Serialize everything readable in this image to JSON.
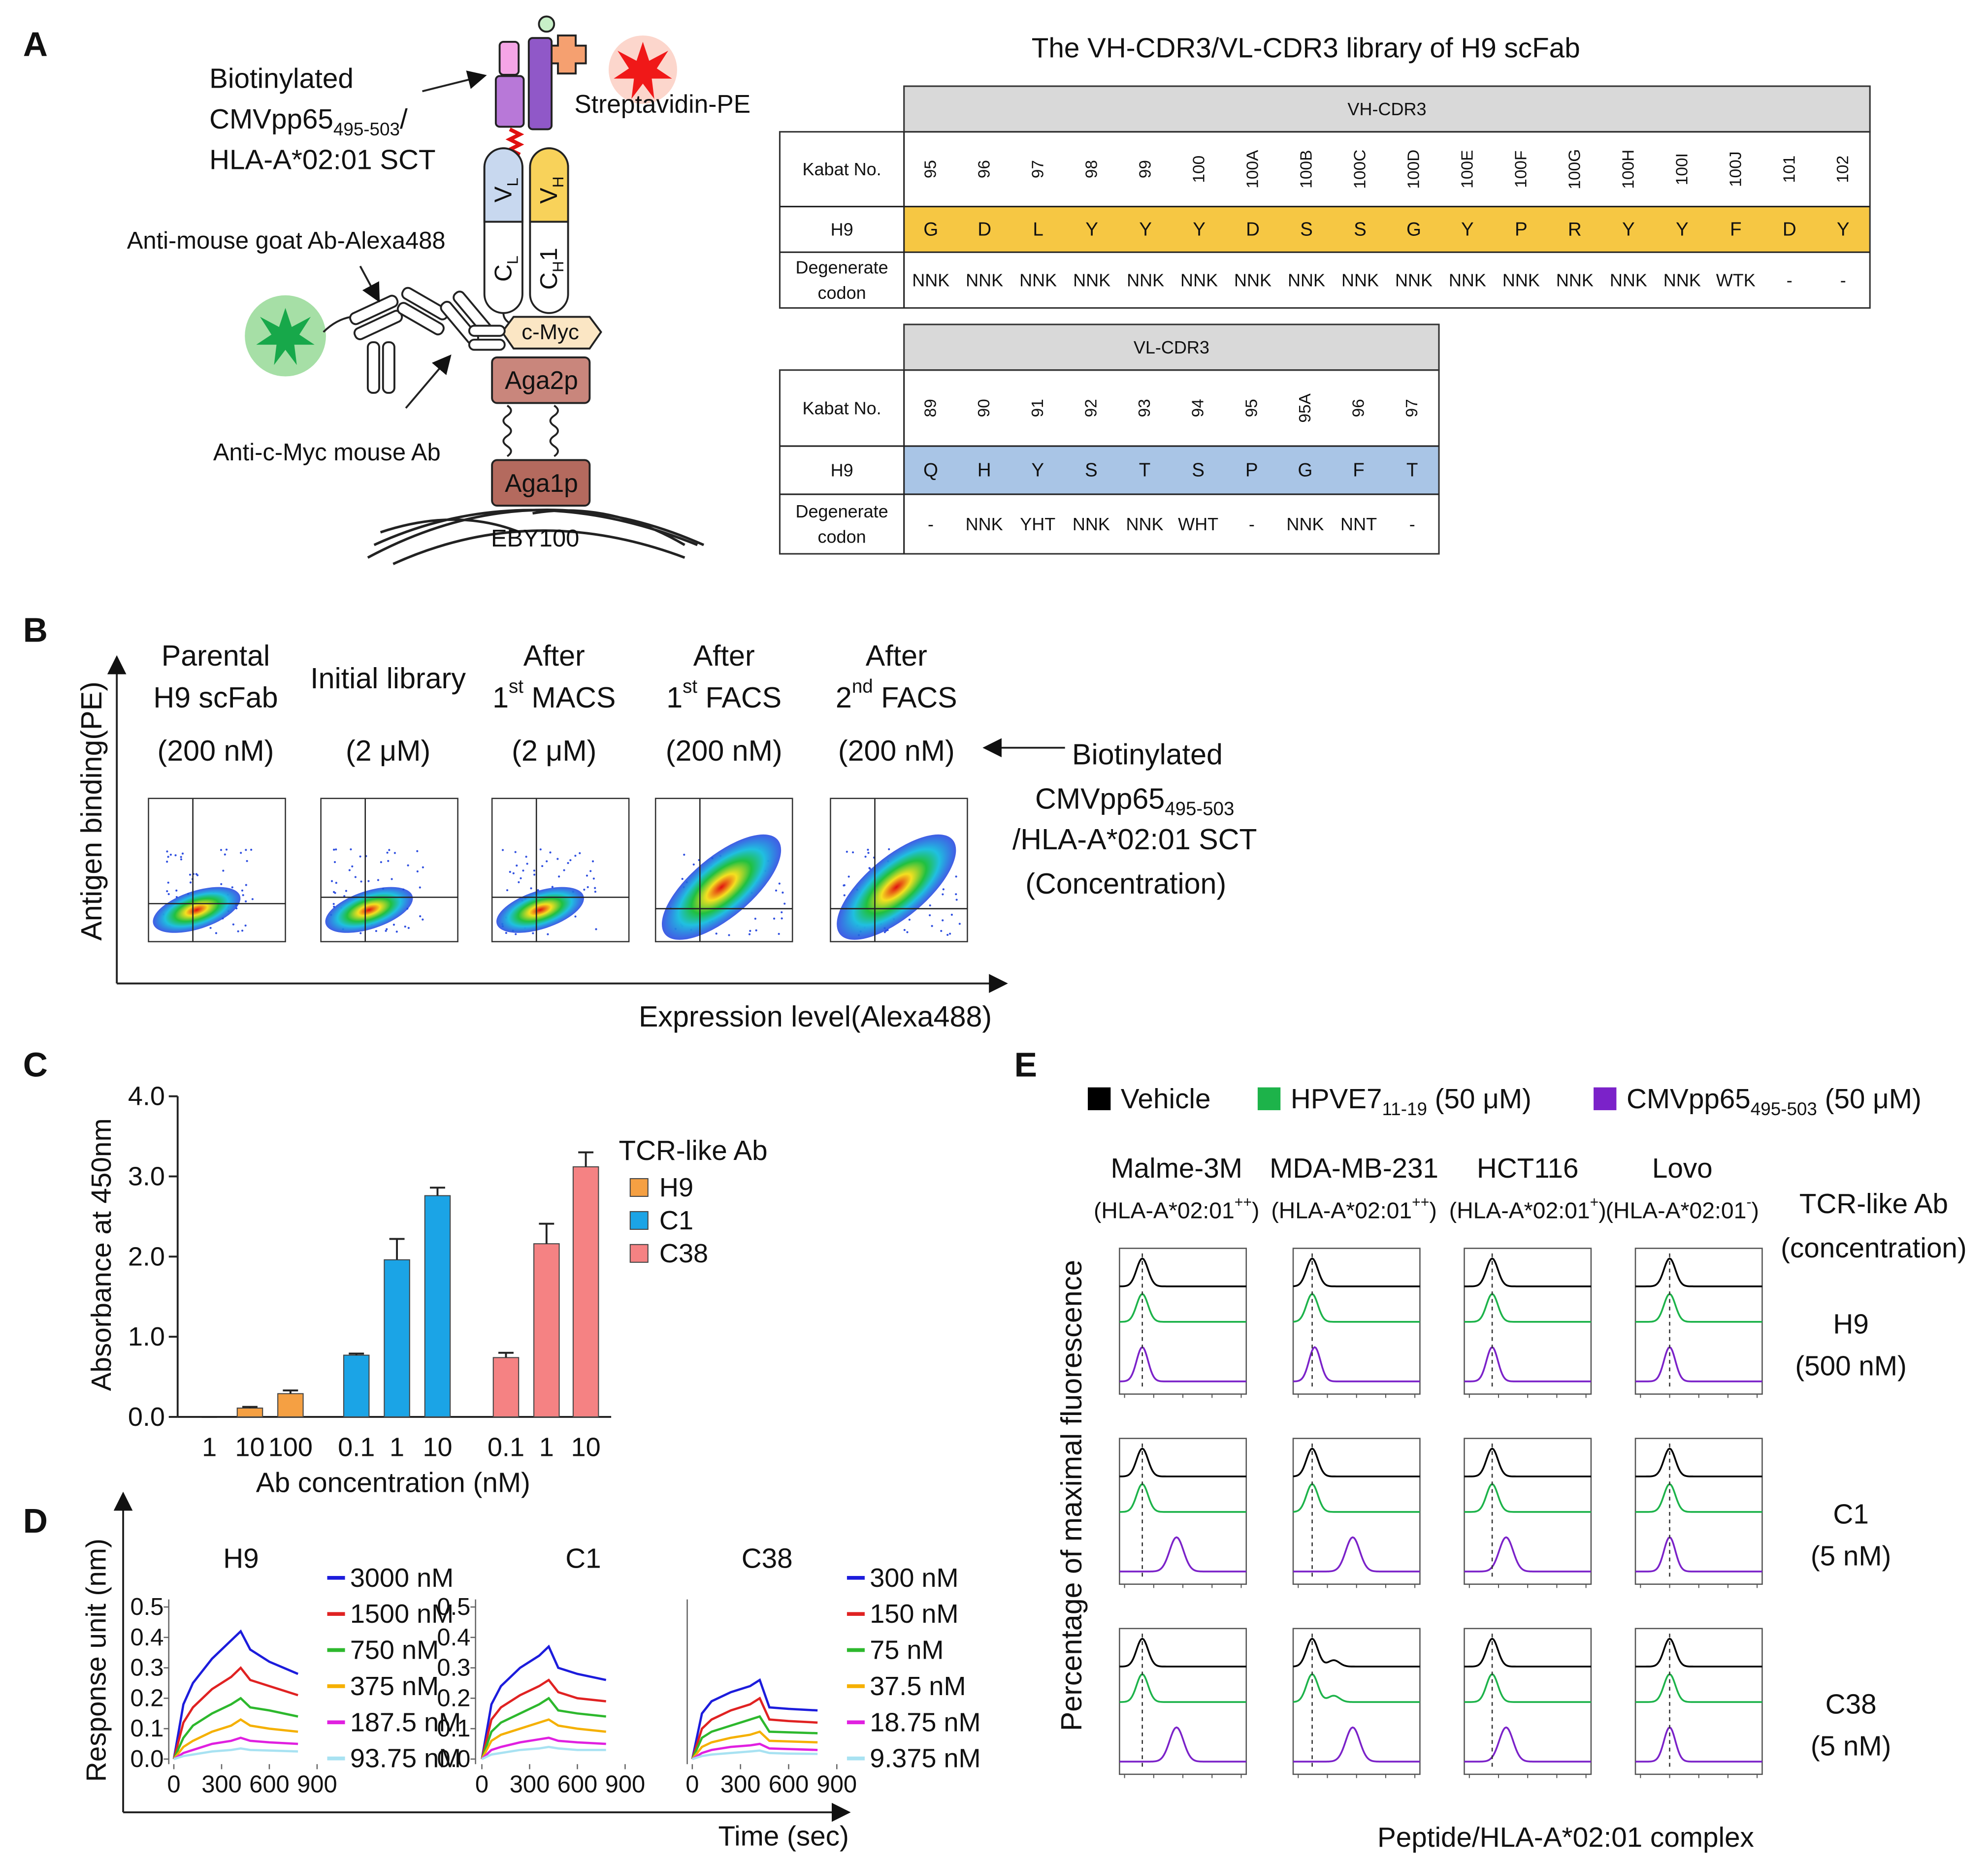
{
  "panel_labels": [
    "A",
    "B",
    "C",
    "D",
    "E"
  ],
  "diagram_a": {
    "antigen_label": [
      [
        {
          "t": "Biotinylated"
        }
      ],
      [
        {
          "t": "CMVpp65"
        },
        {
          "sub": "495-503"
        },
        {
          "t": "/"
        }
      ],
      [
        {
          "t": "HLA-A*02:01 SCT"
        }
      ]
    ],
    "streptavidin": "Streptavidin-PE",
    "secondary_ab": "Anti-mouse goat Ab-Alexa488",
    "primary_ab": "Anti-c-Myc mouse Ab",
    "vl": [
      {
        "t": "V"
      },
      {
        "sub": "L"
      }
    ],
    "cl": [
      {
        "t": "C"
      },
      {
        "sub": "L"
      }
    ],
    "vh": [
      {
        "t": "V"
      },
      {
        "sub": "H"
      }
    ],
    "ch1": [
      {
        "t": "C"
      },
      {
        "sub": "H"
      },
      {
        "t": "1"
      }
    ],
    "cmyc": "c-Myc",
    "aga2p": "Aga2p",
    "aga1p": "Aga1p",
    "cell": "EBY100"
  },
  "library_tables": {
    "title": "The VH-CDR3/VL-CDR3 library of H9 scFab",
    "vh": {
      "header": "VH-CDR3",
      "kabat_label": "Kabat No.",
      "seq_label": "H9",
      "codon_label": [
        "Degenerate",
        "codon"
      ],
      "kabat": [
        "95",
        "96",
        "97",
        "98",
        "99",
        "100",
        "100A",
        "100B",
        "100C",
        "100D",
        "100E",
        "100F",
        "100G",
        "100H",
        "100I",
        "100J",
        "101",
        "102"
      ],
      "residues": [
        "G",
        "D",
        "L",
        "Y",
        "Y",
        "Y",
        "D",
        "S",
        "S",
        "G",
        "Y",
        "P",
        "R",
        "Y",
        "Y",
        "F",
        "D",
        "Y"
      ],
      "codons": [
        "NNK",
        "NNK",
        "NNK",
        "NNK",
        "NNK",
        "NNK",
        "NNK",
        "NNK",
        "NNK",
        "NNK",
        "NNK",
        "NNK",
        "NNK",
        "NNK",
        "NNK",
        "WTK",
        "-",
        "-"
      ]
    },
    "vl": {
      "header": "VL-CDR3",
      "kabat_label": "Kabat No.",
      "seq_label": "H9",
      "codon_label": [
        "Degenerate",
        "codon"
      ],
      "kabat": [
        "89",
        "90",
        "91",
        "92",
        "93",
        "94",
        "95",
        "95A",
        "96",
        "97"
      ],
      "residues": [
        "Q",
        "H",
        "Y",
        "S",
        "T",
        "S",
        "P",
        "G",
        "F",
        "T"
      ],
      "codons": [
        "-",
        "NNK",
        "YHT",
        "NNK",
        "NNK",
        "WHT",
        "-",
        "NNK",
        "NNT",
        "-"
      ]
    }
  },
  "flow_b": {
    "columns": [
      [
        [
          {
            "t": "Parental"
          }
        ],
        [
          {
            "t": "H9 scFab"
          }
        ],
        [
          {
            "t": "(200 nM)"
          }
        ]
      ],
      [
        [
          {
            "t": "Initial library"
          }
        ],
        [
          {
            "t": "(2 μM)"
          }
        ]
      ],
      [
        [
          {
            "t": "After"
          }
        ],
        [
          {
            "t": "1"
          },
          {
            "sup": "st"
          },
          {
            "t": " MACS"
          }
        ],
        [
          {
            "t": "(2 μM)"
          }
        ]
      ],
      [
        [
          {
            "t": "After"
          }
        ],
        [
          {
            "t": "1"
          },
          {
            "sup": "st"
          },
          {
            "t": " FACS"
          }
        ],
        [
          {
            "t": "(200 nM)"
          }
        ]
      ],
      [
        [
          {
            "t": "After"
          }
        ],
        [
          {
            "t": "2"
          },
          {
            "sup": "nd"
          },
          {
            "t": " FACS"
          }
        ],
        [
          {
            "t": "(200 nM)"
          }
        ]
      ]
    ],
    "antigen_note": [
      [
        {
          "t": "Biotinylated"
        }
      ],
      [
        {
          "t": "CMVpp65"
        },
        {
          "sub": "495-503"
        }
      ],
      [
        {
          "t": "/HLA-A*02:01 SCT"
        }
      ],
      [
        {
          "t": "(Concentration)"
        }
      ]
    ],
    "ylabel": "Antigen binding(PE)",
    "xlabel": "Expression level(Alexa488)"
  },
  "panel_d": {
    "ylabel": "Response unit (nm)",
    "xlabel": "Time (sec)"
  },
  "chart_data": [
    {
      "type": "bar",
      "ylabel": "Absorbance at 450nm",
      "xlabel": "Ab concentration (nM)",
      "legend_title": "TCR-like Ab",
      "ylim": [
        0,
        4
      ],
      "yticks": [
        {
          "value": 0,
          "label": "0.0"
        },
        {
          "value": 1,
          "label": "1.0"
        },
        {
          "value": 2,
          "label": "2.0"
        },
        {
          "value": 3,
          "label": "3.0"
        },
        {
          "value": 4,
          "label": "4.0"
        }
      ],
      "series": [
        {
          "name": "H9",
          "color": "#f5a043",
          "categories": [
            "1",
            "10",
            "100"
          ],
          "values": [
            0,
            0.11,
            0.29
          ],
          "errors": [
            0,
            0.015,
            0.04
          ]
        },
        {
          "name": "C1",
          "color": "#1ba4e6",
          "categories": [
            "0.1",
            "1",
            "10"
          ],
          "values": [
            0.77,
            1.96,
            2.76
          ],
          "errors": [
            0.02,
            0.26,
            0.1
          ]
        },
        {
          "name": "C38",
          "color": "#f58283",
          "categories": [
            "0.1",
            "1",
            "10"
          ],
          "values": [
            0.74,
            2.16,
            3.12
          ],
          "errors": [
            0.06,
            0.25,
            0.18
          ]
        }
      ]
    },
    {
      "type": "line",
      "title": "H9",
      "x": [
        0,
        60,
        120,
        240,
        360,
        420,
        480,
        600,
        780
      ],
      "xlim": [
        0,
        900
      ],
      "xticks": [
        0,
        300,
        600,
        900
      ],
      "ylim": [
        0,
        0.5
      ],
      "yticks": [
        {
          "value": 0,
          "label": "0.0"
        },
        0.1,
        0.2,
        0.3,
        0.4,
        0.5
      ],
      "series": [
        {
          "name": "3000 nM",
          "color": "#1c1cdc",
          "values": [
            0,
            0.18,
            0.25,
            0.33,
            0.39,
            0.42,
            0.36,
            0.32,
            0.28
          ]
        },
        {
          "name": "1500 nM",
          "color": "#e02222",
          "values": [
            0,
            0.12,
            0.17,
            0.23,
            0.27,
            0.3,
            0.26,
            0.24,
            0.21
          ]
        },
        {
          "name": "750 nM",
          "color": "#2db82d",
          "values": [
            0,
            0.07,
            0.11,
            0.15,
            0.18,
            0.2,
            0.17,
            0.16,
            0.14
          ]
        },
        {
          "name": "375 nM",
          "color": "#f5b000",
          "values": [
            0,
            0.04,
            0.06,
            0.09,
            0.11,
            0.13,
            0.11,
            0.1,
            0.09
          ]
        },
        {
          "name": "187.5 nM",
          "color": "#e020e0",
          "values": [
            0,
            0.02,
            0.03,
            0.05,
            0.06,
            0.07,
            0.06,
            0.055,
            0.05
          ]
        },
        {
          "name": "93.75 nM",
          "color": "#a8e2f2",
          "values": [
            0,
            0.01,
            0.015,
            0.025,
            0.03,
            0.035,
            0.03,
            0.028,
            0.025
          ]
        }
      ]
    },
    {
      "type": "line",
      "title": "C1",
      "x": [
        0,
        60,
        120,
        240,
        360,
        420,
        480,
        600,
        780
      ],
      "xlim": [
        0,
        900
      ],
      "xticks": [
        0,
        300,
        600,
        900
      ],
      "ylim": [
        0,
        0.5
      ],
      "yticks": [
        {
          "value": 0,
          "label": "0.0"
        },
        0.1,
        0.2,
        0.3,
        0.4,
        0.5
      ],
      "series": [
        {
          "color": "#1c1cdc",
          "values": [
            0,
            0.18,
            0.24,
            0.3,
            0.34,
            0.37,
            0.3,
            0.28,
            0.26
          ]
        },
        {
          "color": "#e02222",
          "values": [
            0,
            0.13,
            0.17,
            0.21,
            0.24,
            0.26,
            0.22,
            0.2,
            0.19
          ]
        },
        {
          "color": "#2db82d",
          "values": [
            0,
            0.09,
            0.12,
            0.15,
            0.18,
            0.2,
            0.16,
            0.15,
            0.14
          ]
        },
        {
          "color": "#f5b000",
          "values": [
            0,
            0.06,
            0.08,
            0.1,
            0.12,
            0.13,
            0.11,
            0.1,
            0.09
          ]
        },
        {
          "color": "#e020e0",
          "values": [
            0,
            0.03,
            0.04,
            0.055,
            0.065,
            0.07,
            0.06,
            0.055,
            0.05
          ]
        },
        {
          "color": "#a8e2f2",
          "values": [
            0,
            0.015,
            0.02,
            0.03,
            0.035,
            0.04,
            0.035,
            0.03,
            0.03
          ]
        }
      ]
    },
    {
      "type": "line",
      "title": "C38",
      "x": [
        0,
        60,
        120,
        240,
        360,
        420,
        480,
        600,
        780
      ],
      "xlim": [
        0,
        900
      ],
      "xticks": [
        0,
        300,
        600,
        900
      ],
      "ylim": [
        0,
        0.5
      ],
      "series": [
        {
          "name": "300 nM",
          "color": "#1c1cdc",
          "values": [
            0,
            0.15,
            0.19,
            0.22,
            0.24,
            0.26,
            0.17,
            0.165,
            0.16
          ]
        },
        {
          "name": "150 nM",
          "color": "#e02222",
          "values": [
            0,
            0.1,
            0.13,
            0.16,
            0.18,
            0.2,
            0.13,
            0.125,
            0.12
          ]
        },
        {
          "name": "75 nM",
          "color": "#2db82d",
          "values": [
            0,
            0.07,
            0.09,
            0.11,
            0.13,
            0.14,
            0.09,
            0.088,
            0.085
          ]
        },
        {
          "name": "37.5 nM",
          "color": "#f5b000",
          "values": [
            0,
            0.04,
            0.055,
            0.07,
            0.08,
            0.09,
            0.06,
            0.058,
            0.055
          ]
        },
        {
          "name": "18.75 nM",
          "color": "#e020e0",
          "values": [
            0,
            0.02,
            0.03,
            0.04,
            0.045,
            0.05,
            0.035,
            0.033,
            0.03
          ]
        },
        {
          "name": "9.375 nM",
          "color": "#a8e2f2",
          "values": [
            0,
            0.01,
            0.015,
            0.02,
            0.025,
            0.028,
            0.02,
            0.018,
            0.017
          ]
        }
      ]
    }
  ],
  "panel_e": {
    "legend": [
      [
        {
          "t": "Vehicle"
        }
      ],
      [
        {
          "t": "HPVE7"
        },
        {
          "sub": "11-19"
        },
        {
          "t": " (50 μM)"
        }
      ],
      [
        {
          "t": "CMVpp65"
        },
        {
          "sub": "495-503"
        },
        {
          "t": " (50 μM)"
        }
      ]
    ],
    "colors": [
      "#000000",
      "#1db34a",
      "#7b22c9"
    ],
    "columns": [
      {
        "name": "Malme-3M",
        "hla": [
          {
            "t": "(HLA-A*02:01"
          },
          {
            "sup": "++"
          },
          {
            "t": ")"
          }
        ]
      },
      {
        "name": "MDA-MB-231",
        "hla": [
          {
            "t": "(HLA-A*02:01"
          },
          {
            "sup": "++"
          },
          {
            "t": ")"
          }
        ]
      },
      {
        "name": "HCT116",
        "hla": [
          {
            "t": "(HLA-A*02:01"
          },
          {
            "sup": "+"
          },
          {
            "t": ")"
          }
        ]
      },
      {
        "name": "Lovo",
        "hla": [
          {
            "t": "(HLA-A*02:01"
          },
          {
            "sup": "-"
          },
          {
            "t": ")"
          }
        ]
      }
    ],
    "row_header": [
      "TCR-like Ab",
      "(concentration)"
    ],
    "rows": [
      [
        "H9",
        "(500 nM)"
      ],
      [
        "C1",
        "(5 nM)"
      ],
      [
        "C38",
        "(5 nM)"
      ]
    ],
    "ylabel": "Percentage of maximal fluorescence",
    "xlabel": "Peptide/HLA-A*02:01 complex"
  }
}
